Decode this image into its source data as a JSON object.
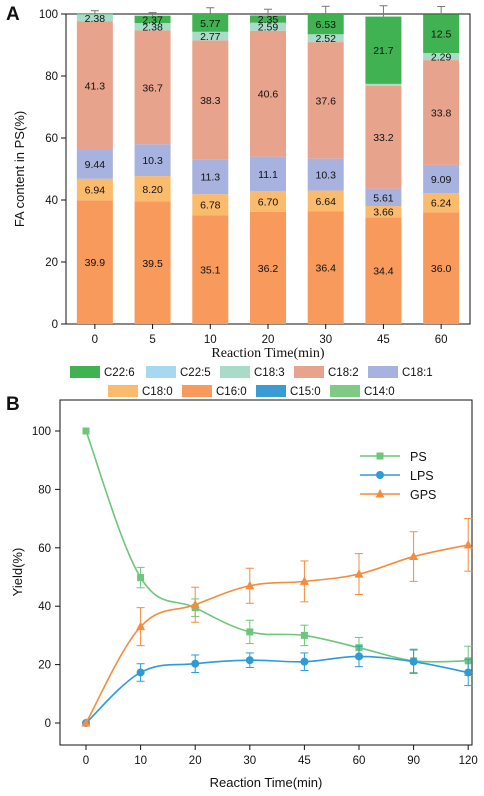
{
  "chart_data": [
    {
      "panel": "A",
      "type": "bar",
      "stacked": true,
      "ylabel": "FA content in PS(%)",
      "xlabel": "Reaction Time(min)",
      "ylim": [
        0,
        100
      ],
      "yticks": [
        0,
        20,
        40,
        60,
        80,
        100
      ],
      "categories": [
        "0",
        "5",
        "10",
        "20",
        "30",
        "45",
        "60"
      ],
      "series": [
        {
          "name": "C16:0",
          "color": "#F79A5C",
          "values": [
            39.9,
            39.5,
            35.1,
            36.2,
            36.4,
            34.4,
            36.0
          ],
          "labels": [
            "39.9",
            "39.5",
            "35.1",
            "36.2",
            "36.4",
            "34.4",
            "36.0"
          ]
        },
        {
          "name": "C18:0",
          "color": "#FBBB6C",
          "values": [
            6.94,
            8.2,
            6.78,
            6.7,
            6.64,
            3.66,
            6.24
          ],
          "labels": [
            "6.94",
            "8.20",
            "6.78",
            "6.70",
            "6.64",
            "3.66",
            "6.24"
          ]
        },
        {
          "name": "C18:1",
          "color": "#A7B2DE",
          "values": [
            9.44,
            10.3,
            11.3,
            11.1,
            10.3,
            5.61,
            9.09
          ],
          "labels": [
            "9.44",
            "10.3",
            "11.3",
            "11.1",
            "10.3",
            "5.61",
            "9.09"
          ]
        },
        {
          "name": "C18:2",
          "color": "#E8A38C",
          "values": [
            41.3,
            36.7,
            38.3,
            40.6,
            37.6,
            33.2,
            33.8
          ],
          "labels": [
            "41.3",
            "36.7",
            "38.3",
            "40.6",
            "37.6",
            "33.2",
            "33.8"
          ]
        },
        {
          "name": "C18:3",
          "color": "#A9DCC8",
          "values": [
            2.38,
            2.38,
            2.77,
            2.59,
            2.52,
            0.6,
            2.29
          ],
          "labels": [
            "2.38",
            "2.38",
            "2.77",
            "2.59",
            "2.52",
            "",
            "2.29"
          ]
        },
        {
          "name": "C22:6",
          "color": "#41B251",
          "values": [
            0.1,
            2.37,
            5.77,
            2.35,
            6.53,
            21.7,
            12.5
          ],
          "labels": [
            "",
            "2.37",
            "5.77",
            "2.35",
            "6.53",
            "21.7",
            "12.5"
          ]
        }
      ],
      "errors": [
        {
          "category": "0",
          "top": 1.0
        },
        {
          "category": "5",
          "top": 1.0
        },
        {
          "category": "10",
          "top": 2.0
        },
        {
          "category": "20",
          "top": 2.0
        },
        {
          "category": "30",
          "top": 2.5
        },
        {
          "category": "45",
          "top": 3.5
        },
        {
          "category": "60",
          "top": 2.5
        }
      ],
      "legend": {
        "placement": "bottom",
        "entries": [
          {
            "name": "C22:6",
            "color": "#41B251"
          },
          {
            "name": "C22:5",
            "color": "#A8D8F0"
          },
          {
            "name": "C18:3",
            "color": "#A9DCC8"
          },
          {
            "name": "C18:2",
            "color": "#E8A38C"
          },
          {
            "name": "C18:1",
            "color": "#A7B2DE"
          },
          {
            "name": "C18:0",
            "color": "#FBBB6C"
          },
          {
            "name": "C16:0",
            "color": "#F79A5C"
          },
          {
            "name": "C15:0",
            "color": "#3A9BD5"
          },
          {
            "name": "C14:0",
            "color": "#7FCB85"
          }
        ]
      }
    },
    {
      "panel": "B",
      "type": "line",
      "ylabel": "Yield(%)",
      "xlabel": "Reaction Time(min)",
      "ylim": [
        0,
        100
      ],
      "yticks": [
        0,
        20,
        40,
        60,
        80,
        100
      ],
      "x": [
        "0",
        "10",
        "20",
        "30",
        "45",
        "60",
        "90",
        "120"
      ],
      "series": [
        {
          "name": "PS",
          "color": "#6CC77A",
          "marker": "square",
          "values": [
            100,
            49.8,
            39.5,
            31.2,
            30.0,
            25.8,
            21.3,
            21.3
          ],
          "errors": [
            0,
            3.5,
            3.0,
            4.0,
            3.5,
            3.5,
            4.0,
            5.0
          ]
        },
        {
          "name": "LPS",
          "color": "#2E9BD6",
          "marker": "circle",
          "values": [
            0,
            17.3,
            20.3,
            21.5,
            21.0,
            22.8,
            21.0,
            17.3
          ],
          "errors": [
            0,
            3.0,
            3.0,
            2.5,
            3.0,
            3.5,
            4.0,
            4.5
          ]
        },
        {
          "name": "GPS",
          "color": "#F58C3D",
          "marker": "triangle",
          "values": [
            0,
            33.0,
            40.5,
            47.0,
            48.5,
            51.0,
            57.0,
            61.0
          ],
          "errors": [
            0,
            6.5,
            6.0,
            6.0,
            7.0,
            7.0,
            8.5,
            9.0
          ]
        }
      ],
      "legend": {
        "placement": "top-right"
      }
    }
  ]
}
